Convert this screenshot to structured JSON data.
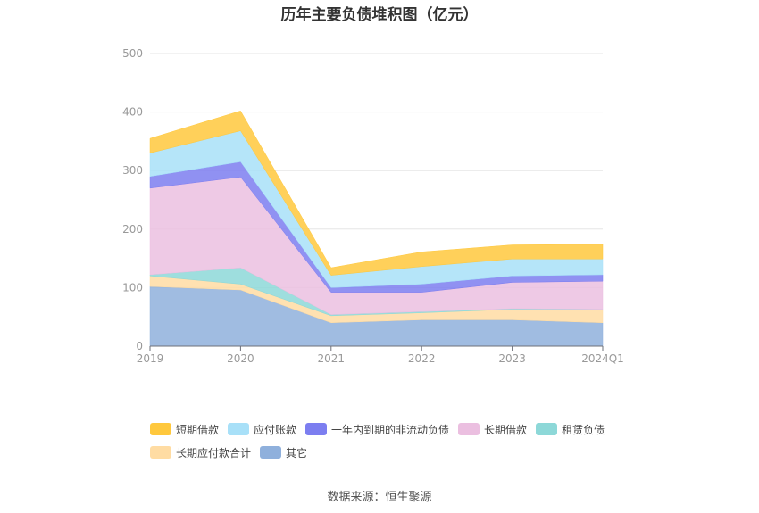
{
  "title": "历年主要负债堆积图（亿元）",
  "source": "数据来源：恒生聚源",
  "chart_data": {
    "type": "area",
    "stacked": true,
    "categories": [
      "2019",
      "2020",
      "2021",
      "2022",
      "2023",
      "2024Q1"
    ],
    "y_ticks": [
      "0",
      "100",
      "200",
      "300",
      "400",
      "500"
    ],
    "ylim": [
      0,
      500
    ],
    "grid": true,
    "legend_position": "bottom",
    "series": [
      {
        "name": "其它",
        "color": "#8fb0dc",
        "values": [
          102,
          96,
          40,
          45,
          45,
          40
        ]
      },
      {
        "name": "长期应付款合计",
        "color": "#ffdca3",
        "values": [
          18,
          10,
          12,
          12,
          18,
          22
        ]
      },
      {
        "name": "租赁负债",
        "color": "#8dd8d8",
        "values": [
          2,
          28,
          2,
          2,
          1,
          1
        ]
      },
      {
        "name": "长期借款",
        "color": "#ebbfe0",
        "values": [
          148,
          155,
          38,
          33,
          45,
          48
        ]
      },
      {
        "name": "一年内到期的非流动负债",
        "color": "#7c7ef0",
        "values": [
          20,
          26,
          8,
          14,
          11,
          11
        ]
      },
      {
        "name": "应付账款",
        "color": "#a8e0f8",
        "values": [
          40,
          53,
          21,
          30,
          29,
          27
        ]
      },
      {
        "name": "短期借款",
        "color": "#ffc83d",
        "values": [
          25,
          34,
          13,
          25,
          24,
          25
        ]
      }
    ],
    "legend_order": [
      "短期借款",
      "应付账款",
      "一年内到期的非流动负债",
      "长期借款",
      "租赁负债",
      "长期应付款合计",
      "其它"
    ]
  }
}
